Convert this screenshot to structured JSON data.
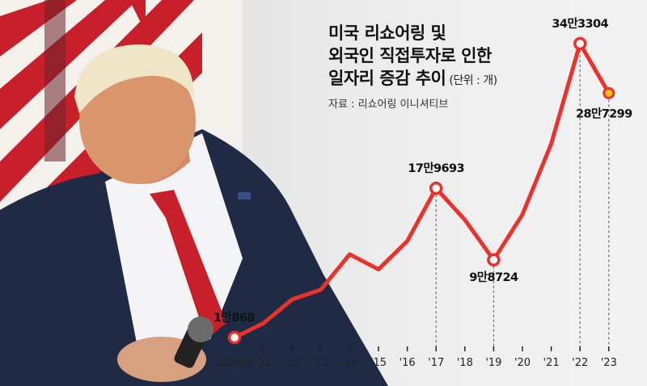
{
  "title": {
    "line1": "미국 리쇼어링 및",
    "line2": "외국인 직접투자로 인한",
    "line3": "일자리 증감 추이",
    "unit": "(단위 : 개)"
  },
  "source": "자료 : 리쇼어링 이니셔티브",
  "colors": {
    "line": "#e8322c",
    "highlight": "#f5c518",
    "guide": "#555555"
  },
  "chart_data": {
    "type": "line",
    "categories": [
      "2010년",
      "'11",
      "'12",
      "'13",
      "'14",
      "'15",
      "'16",
      "'17",
      "'18",
      "'19",
      "'20",
      "'21",
      "'22",
      "'23"
    ],
    "series": [
      {
        "values": [
          10868,
          27000,
          54000,
          65000,
          105000,
          88000,
          120000,
          179693,
          144000,
          98724,
          150000,
          230000,
          343304,
          287299
        ]
      }
    ],
    "labels": [
      {
        "index": 0,
        "text": "1만868"
      },
      {
        "index": 7,
        "text": "17만9693"
      },
      {
        "index": 9,
        "text": "9만8724"
      },
      {
        "index": 12,
        "text": "34만3304"
      },
      {
        "index": 13,
        "text": "28만7299"
      }
    ],
    "highlight_index": 13,
    "grid": false
  }
}
